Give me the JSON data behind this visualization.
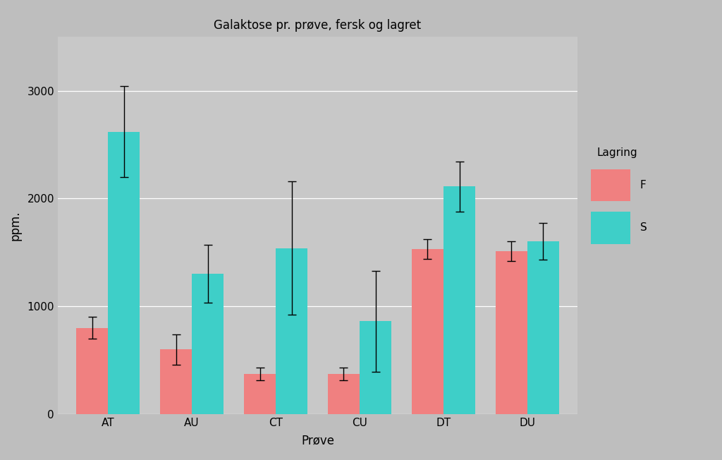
{
  "title": "Galaktose pr. prøve, fersk og lagret",
  "xlabel": "Prøve",
  "ylabel": "ppm.",
  "legend_title": "Lagring",
  "legend_labels": [
    "F",
    "S"
  ],
  "categories": [
    "AT",
    "AU",
    "CT",
    "CU",
    "DT",
    "DU"
  ],
  "F_values": [
    800,
    600,
    370,
    370,
    1530,
    1510
  ],
  "S_values": [
    2620,
    1300,
    1540,
    860,
    2110,
    1600
  ],
  "F_errors": [
    100,
    140,
    60,
    60,
    90,
    90
  ],
  "S_errors": [
    420,
    270,
    620,
    470,
    230,
    170
  ],
  "color_F": "#F08080",
  "color_S": "#3ECFC8",
  "background_color": "#BEBEBE",
  "panel_color": "#C8C8C8",
  "ylim": [
    0,
    3500
  ],
  "yticks": [
    0,
    1000,
    2000,
    3000
  ],
  "bar_width": 0.38,
  "figsize": [
    10.24,
    6.52
  ],
  "dpi": 100
}
